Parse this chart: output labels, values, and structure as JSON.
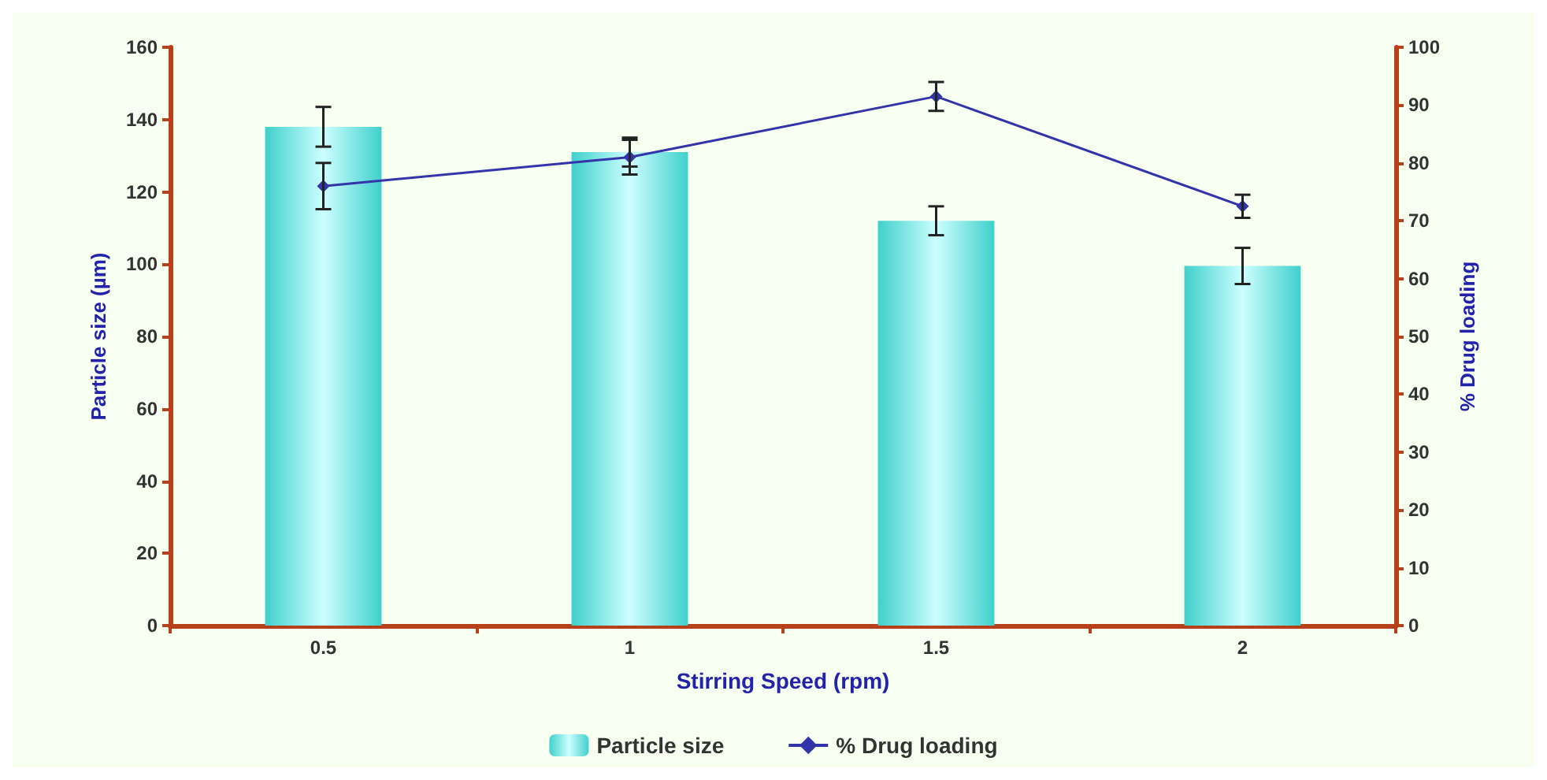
{
  "chart_data": {
    "type": "bar",
    "xlabel": "Stirring Speed (rpm)",
    "ylabel": "Particle size (µm)",
    "y2label": "% Drug loading",
    "categories": [
      "0.5",
      "1",
      "1.5",
      "2"
    ],
    "series": [
      {
        "name": "Particle size",
        "color": "#40d0cc",
        "values": [
          138,
          131,
          112,
          99.5
        ],
        "errors": [
          5.5,
          4,
          4,
          5
        ]
      },
      {
        "name": "% Drug loading",
        "type": "line",
        "axis": "y2",
        "color": "#3333aa",
        "marker": "diamond",
        "values": [
          76,
          81,
          91.5,
          72.5
        ],
        "errors": [
          4,
          3,
          2.5,
          2
        ]
      }
    ],
    "ylim": [
      0,
      160
    ],
    "yticks": [
      0,
      20,
      40,
      60,
      80,
      100,
      120,
      140,
      160
    ],
    "y2lim": [
      0,
      100
    ],
    "y2ticks": [
      0,
      10,
      20,
      30,
      40,
      50,
      60,
      70,
      80,
      90,
      100
    ],
    "grid": false,
    "legend": "bottom"
  }
}
